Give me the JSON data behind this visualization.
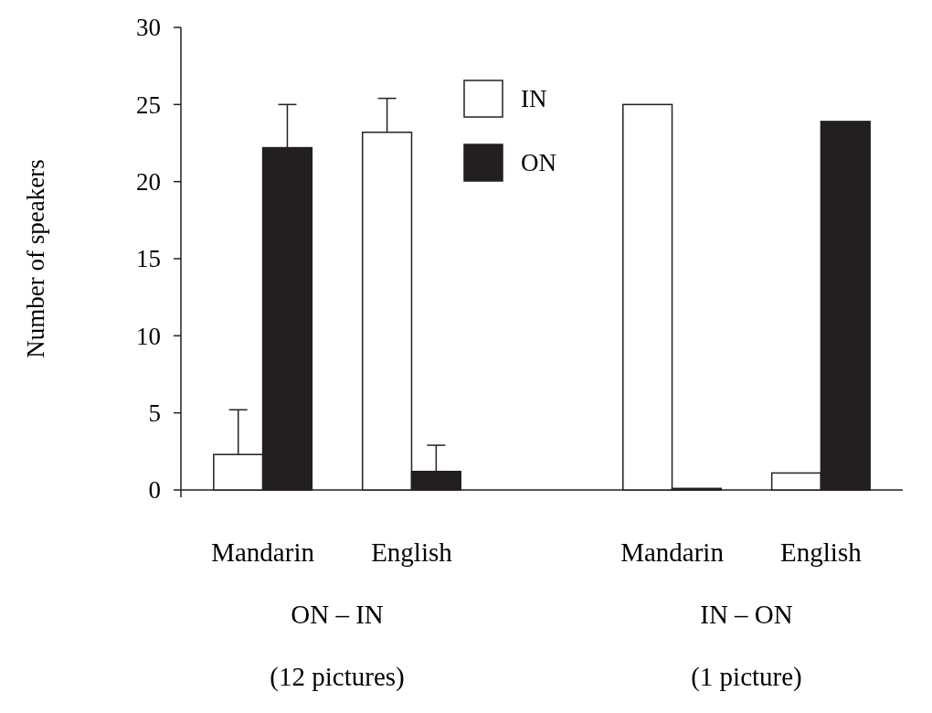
{
  "chart_data": {
    "type": "bar",
    "ylabel": "Number of speakers",
    "categories": [
      "Mandarin",
      "English",
      "Mandarin",
      "English"
    ],
    "series": [
      {
        "name": "IN",
        "color": "#ffffff",
        "values": [
          2.3,
          23.2,
          25,
          1.1
        ],
        "errors": [
          [
            2.3,
            5.2
          ],
          [
            23.2,
            25.4
          ],
          null,
          null
        ]
      },
      {
        "name": "ON",
        "color": "#231f20",
        "values": [
          22.2,
          1.2,
          0.1,
          23.9
        ],
        "errors": [
          [
            22.2,
            25.0
          ],
          [
            1.2,
            2.9
          ],
          null,
          null
        ]
      }
    ],
    "ylim": [
      0,
      30
    ],
    "yticks": [
      0,
      5,
      10,
      15,
      20,
      25,
      30
    ],
    "legend": "top",
    "grid": false,
    "annotations": [
      "ON – IN",
      "IN – ON",
      "(12 pictures)",
      "(1 picture)"
    ]
  }
}
